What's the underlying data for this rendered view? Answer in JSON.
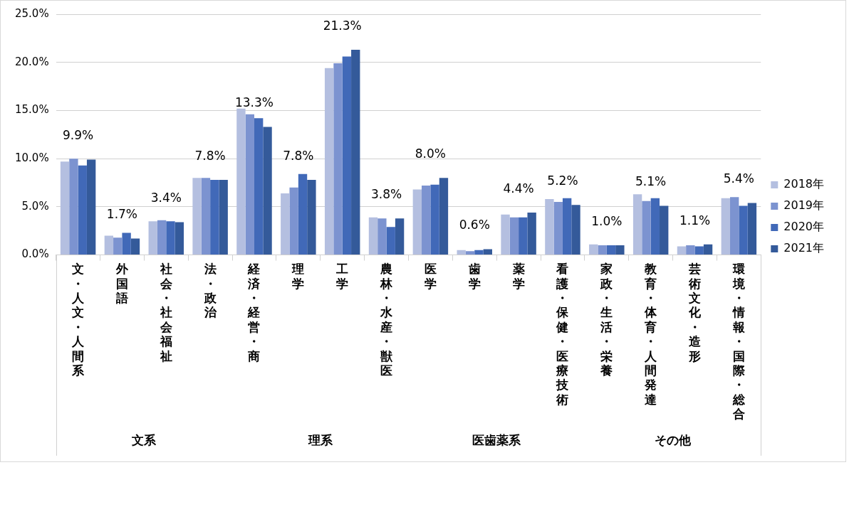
{
  "chart_data": {
    "type": "bar",
    "categories": [
      "文・人文・人間系",
      "外国語",
      "社会・社会福祉",
      "法・政治",
      "経済・経営・商",
      "理学",
      "工学",
      "農林・水産・獣医",
      "医学",
      "歯学",
      "薬学",
      "看護・保健・医療技術",
      "家政・生活・栄養",
      "教育・体育・人間発達",
      "芸術文化・造形",
      "環境・情報・国際・総合"
    ],
    "series": [
      {
        "name": "2018年",
        "color": "#b4bfe0",
        "values": [
          9.7,
          2.0,
          3.5,
          8.0,
          15.2,
          6.4,
          19.4,
          3.9,
          6.8,
          0.5,
          4.2,
          5.8,
          1.1,
          6.3,
          0.9,
          5.9
        ]
      },
      {
        "name": "2019年",
        "color": "#7c93d0",
        "values": [
          10.0,
          1.8,
          3.6,
          8.0,
          14.6,
          7.0,
          19.9,
          3.8,
          7.2,
          0.4,
          3.9,
          5.5,
          1.0,
          5.6,
          1.0,
          6.0
        ]
      },
      {
        "name": "2020年",
        "color": "#4169b8",
        "values": [
          9.3,
          2.3,
          3.5,
          7.8,
          14.2,
          8.4,
          20.6,
          2.9,
          7.3,
          0.5,
          3.9,
          5.9,
          1.0,
          5.9,
          0.9,
          5.1
        ]
      },
      {
        "name": "2021年",
        "color": "#345a9a",
        "values": [
          9.9,
          1.7,
          3.4,
          7.8,
          13.3,
          7.8,
          21.3,
          3.8,
          8.0,
          0.6,
          4.4,
          5.2,
          1.0,
          5.1,
          1.1,
          5.4
        ],
        "value_labels": [
          "9.9%",
          "1.7%",
          "3.4%",
          "7.8%",
          "13.3%",
          "7.8%",
          "21.3%",
          "3.8%",
          "8.0%",
          "0.6%",
          "4.4%",
          "5.2%",
          "1.0%",
          "5.1%",
          "1.1%",
          "5.4%"
        ]
      }
    ],
    "ylim": [
      0,
      25
    ],
    "yticks": [
      {
        "value": 0,
        "label": "0.0%"
      },
      {
        "value": 5,
        "label": "5.0%"
      },
      {
        "value": 10,
        "label": "10.0%"
      },
      {
        "value": 15,
        "label": "15.0%"
      },
      {
        "value": 20,
        "label": "20.0%"
      },
      {
        "value": 25,
        "label": "25.0%"
      }
    ],
    "grid": "y",
    "legend": "right",
    "annotations": [
      "文系",
      "理系",
      "医歯薬系",
      "その他"
    ]
  }
}
